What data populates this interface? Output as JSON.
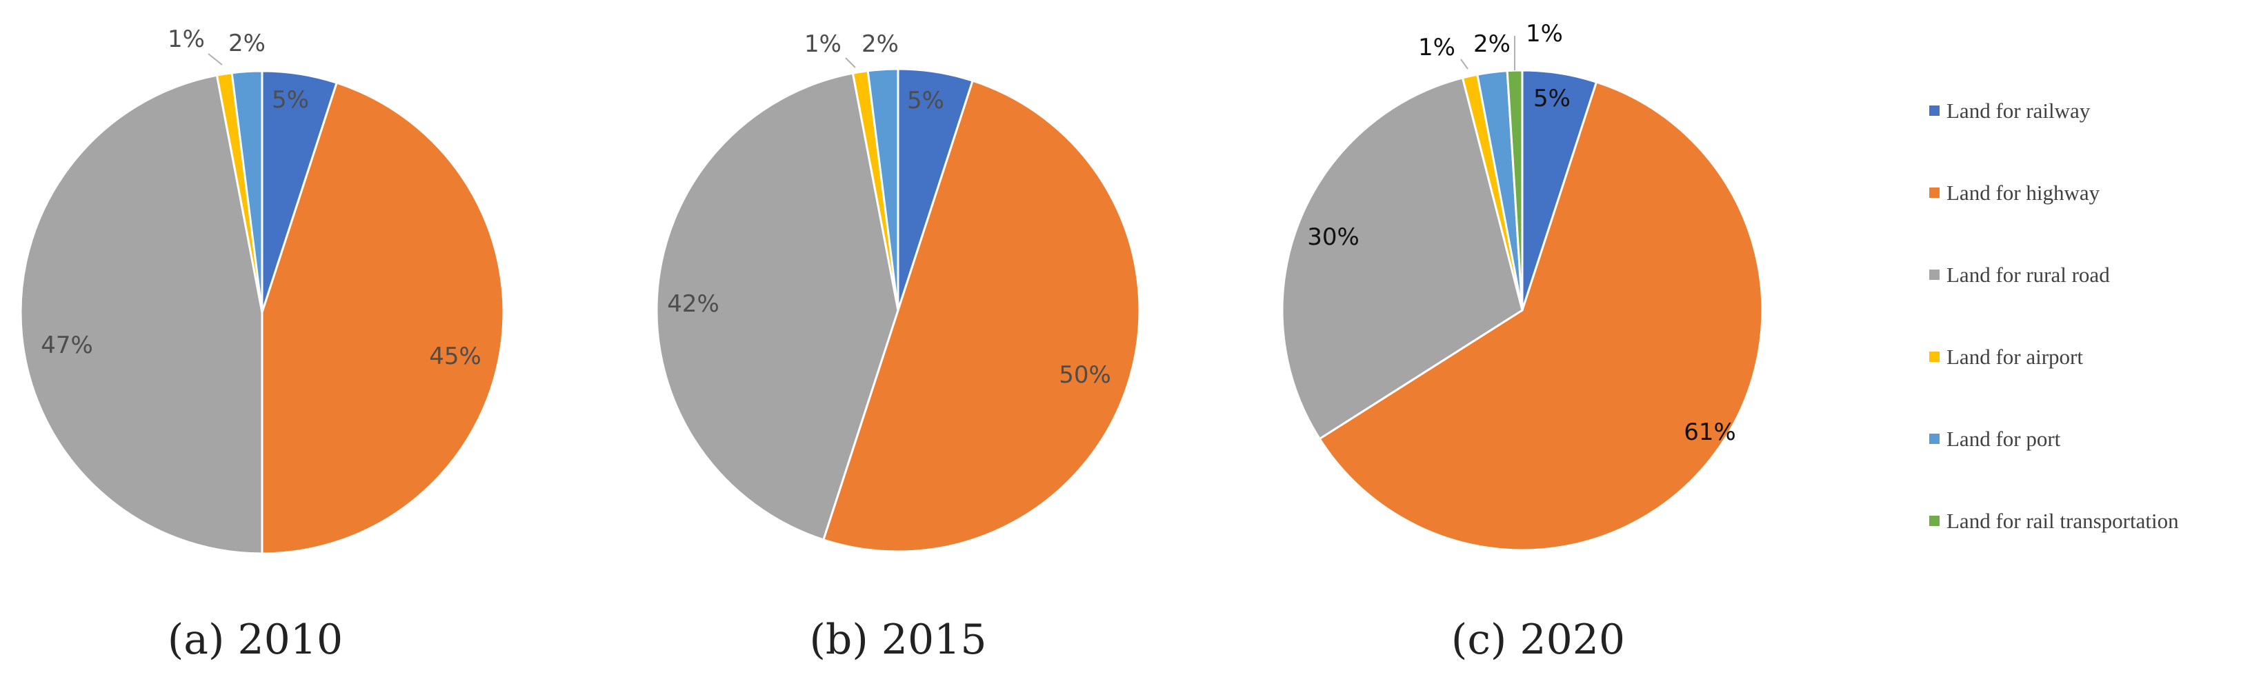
{
  "chart_data": [
    {
      "type": "pie",
      "caption": "(a) 2010",
      "slices": [
        {
          "category": "Land for railway",
          "value": 5,
          "label": "5%"
        },
        {
          "category": "Land for highway",
          "value": 45,
          "label": "45%"
        },
        {
          "category": "Land for rural road",
          "value": 47,
          "label": "47%"
        },
        {
          "category": "Land for airport",
          "value": 1,
          "label": "1%"
        },
        {
          "category": "Land for port",
          "value": 2,
          "label": "2%"
        }
      ]
    },
    {
      "type": "pie",
      "caption": "(b) 2015",
      "slices": [
        {
          "category": "Land for railway",
          "value": 5,
          "label": "5%"
        },
        {
          "category": "Land for highway",
          "value": 50,
          "label": "50%"
        },
        {
          "category": "Land for rural road",
          "value": 42,
          "label": "42%"
        },
        {
          "category": "Land for airport",
          "value": 1,
          "label": "1%"
        },
        {
          "category": "Land for port",
          "value": 2,
          "label": "2%"
        }
      ]
    },
    {
      "type": "pie",
      "caption": "(c) 2020",
      "slices": [
        {
          "category": "Land for railway",
          "value": 5,
          "label": "5%"
        },
        {
          "category": "Land for highway",
          "value": 61,
          "label": "61%"
        },
        {
          "category": "Land for rural road",
          "value": 30,
          "label": "30%"
        },
        {
          "category": "Land for airport",
          "value": 1,
          "label": "1%"
        },
        {
          "category": "Land for port",
          "value": 2,
          "label": "2%"
        },
        {
          "category": "Land for rail transportation",
          "value": 1,
          "label": "1%"
        }
      ]
    }
  ],
  "legend": {
    "position": "right",
    "items": [
      {
        "label": "Land for railway",
        "color": "#4472c4"
      },
      {
        "label": "Land for highway",
        "color": "#ed7d31"
      },
      {
        "label": "Land for rural road",
        "color": "#a5a5a5"
      },
      {
        "label": "Land for airport",
        "color": "#ffc000"
      },
      {
        "label": "Land for port",
        "color": "#5b9bd5"
      },
      {
        "label": "Land for rail transportation",
        "color": "#70ad47"
      }
    ]
  }
}
